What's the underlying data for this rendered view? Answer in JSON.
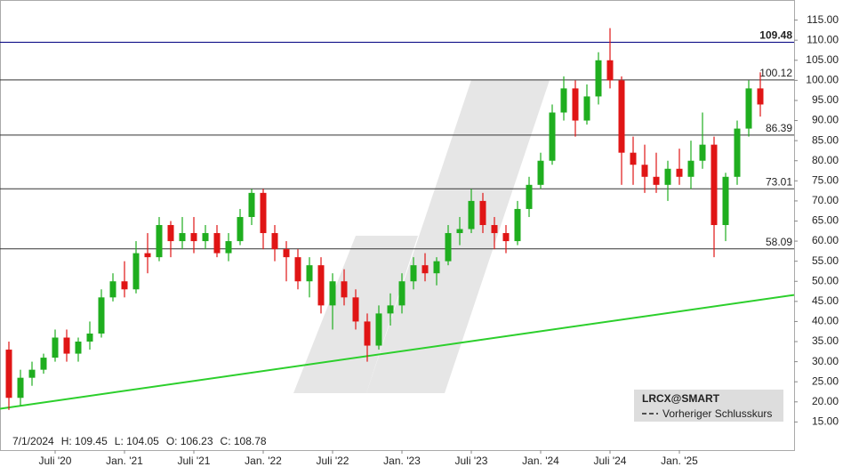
{
  "chart_data": {
    "type": "candlestick",
    "categories": [
      null,
      null,
      null,
      null,
      "Juli '20",
      null,
      null,
      null,
      null,
      null,
      "Jan. '21",
      null,
      null,
      null,
      null,
      null,
      "Juli '21",
      null,
      null,
      null,
      null,
      null,
      "Jan. '22",
      null,
      null,
      null,
      null,
      null,
      "Juli '22",
      null,
      null,
      null,
      null,
      null,
      "Jan. '23",
      null,
      null,
      null,
      null,
      null,
      "Juli '23",
      null,
      null,
      null,
      null,
      null,
      "Jan. '24",
      null,
      null,
      null,
      null,
      null,
      "Juli '24",
      null,
      null,
      null,
      null,
      null,
      "Jan. '25",
      null,
      null,
      null,
      null,
      null,
      null,
      null
    ],
    "open": [
      33,
      21,
      26,
      28,
      31,
      36,
      32,
      35,
      37,
      46,
      50,
      48,
      57,
      56,
      64,
      60,
      62,
      60,
      62,
      57,
      60,
      66,
      72,
      62,
      58,
      56,
      50,
      54,
      44,
      50,
      46,
      40,
      34,
      42,
      44,
      50,
      54,
      52,
      55,
      62,
      63,
      70,
      64,
      62,
      60,
      68,
      74,
      80,
      92,
      98,
      90,
      96,
      105,
      100,
      82,
      79,
      76,
      74,
      78,
      76,
      80,
      84,
      64,
      76,
      88,
      98
    ],
    "high": [
      35,
      28,
      30,
      32,
      38,
      38,
      36,
      40,
      48,
      52,
      55,
      60,
      62,
      66,
      65,
      66,
      66,
      64,
      64,
      62,
      68,
      73,
      73,
      64,
      60,
      58,
      56,
      56,
      52,
      53,
      48,
      42,
      44,
      47,
      52,
      56,
      57,
      56,
      64,
      66,
      73,
      72,
      66,
      64,
      70,
      76,
      82,
      94,
      101,
      100,
      99,
      107,
      113,
      101,
      86,
      84,
      82,
      80,
      83,
      85,
      92,
      86,
      77,
      90,
      100,
      102
    ],
    "low": [
      18,
      19,
      24,
      27,
      30,
      30,
      30,
      33,
      36,
      45,
      46,
      47,
      52,
      55,
      56,
      58,
      57,
      58,
      56,
      55,
      59,
      64,
      58,
      55,
      50,
      48,
      46,
      42,
      38,
      44,
      38,
      30,
      33,
      39,
      42,
      48,
      50,
      49,
      54,
      59,
      62,
      62,
      58,
      57,
      59,
      66,
      73,
      79,
      90,
      86,
      89,
      94,
      98,
      74,
      74,
      72,
      72,
      70,
      74,
      73,
      78,
      56,
      60,
      74,
      86,
      91
    ],
    "close": [
      21,
      26,
      28,
      31,
      36,
      32,
      35,
      37,
      46,
      50,
      48,
      57,
      56,
      64,
      60,
      62,
      60,
      62,
      57,
      60,
      66,
      72,
      62,
      58,
      56,
      50,
      54,
      44,
      50,
      46,
      40,
      34,
      42,
      44,
      50,
      54,
      52,
      55,
      62,
      63,
      70,
      64,
      62,
      60,
      68,
      74,
      80,
      92,
      98,
      90,
      96,
      105,
      100,
      82,
      79,
      76,
      74,
      78,
      76,
      80,
      84,
      64,
      76,
      88,
      98,
      94
    ],
    "up_color": "#1fae1f",
    "down_color": "#e01515",
    "levels": [
      109.48,
      100.12,
      86.39,
      73.01,
      58.09
    ],
    "trendline": {
      "color": "#2ccf2c",
      "values": [
        18.3,
        46.6
      ]
    },
    "ylim": [
      8,
      120
    ],
    "yticks": [
      {
        "value": 15,
        "label": "15.00"
      },
      {
        "value": 20,
        "label": "20.00"
      },
      {
        "value": 25,
        "label": "25.00"
      },
      {
        "value": 30,
        "label": "30.00"
      },
      {
        "value": 35,
        "label": "35.00"
      },
      {
        "value": 40,
        "label": "40.00"
      },
      {
        "value": 45,
        "label": "45.00"
      },
      {
        "value": 50,
        "label": "50.00"
      },
      {
        "value": 55,
        "label": "55.00"
      },
      {
        "value": 60,
        "label": "60.00"
      },
      {
        "value": 65,
        "label": "65.00"
      },
      {
        "value": 70,
        "label": "70.00"
      },
      {
        "value": 75,
        "label": "75.00"
      },
      {
        "value": 80,
        "label": "80.00"
      },
      {
        "value": 85,
        "label": "85.00"
      },
      {
        "value": 90,
        "label": "90.00"
      },
      {
        "value": 95,
        "label": "95.00"
      },
      {
        "value": 100,
        "label": "100.00"
      },
      {
        "value": 105,
        "label": "105.00"
      },
      {
        "value": 110,
        "label": "110.00"
      },
      {
        "value": 115,
        "label": "115.00"
      }
    ],
    "info": [
      "7/1/2024",
      "H: 109.45",
      "L: 104.05",
      "O: 106.23",
      "C: 108.78"
    ],
    "legend": {
      "symbol": "LRCX@SMART",
      "entry": "Vorheriger Schlusskurs"
    }
  }
}
